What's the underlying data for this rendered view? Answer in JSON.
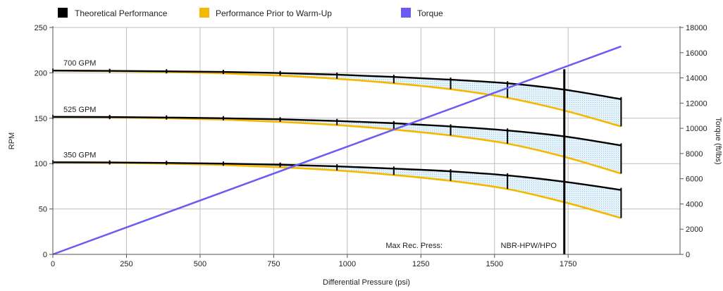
{
  "chart_data": {
    "type": "line",
    "legend": [
      {
        "name": "Theoretical Performance",
        "color": "#000000"
      },
      {
        "name": "Performance Prior to Warm-Up",
        "color": "#f5b800"
      },
      {
        "name": "Torque",
        "color": "#6a5cf2"
      }
    ],
    "legend_position": "top-left",
    "xlabel": "Differential Pressure (psi)",
    "ylabel": "RPM",
    "y2label": "Torque (ft/lbs)",
    "xlim": [
      0,
      2000
    ],
    "ylim": [
      0,
      250
    ],
    "y2lim": [
      0,
      18000
    ],
    "xticks": [
      0,
      250,
      500,
      750,
      1000,
      1250,
      1500,
      1750
    ],
    "yticks": [
      0,
      50,
      100,
      150,
      200,
      250
    ],
    "y2ticks": [
      0,
      2000,
      4000,
      6000,
      8000,
      10000,
      12000,
      14000,
      16000,
      18000
    ],
    "grid": true,
    "series_labels": [
      "700 GPM",
      "525 GPM",
      "350 GPM"
    ],
    "flow_curves": [
      {
        "label": "700 GPM",
        "theoretical": {
          "x": [
            0,
            193,
            386,
            579,
            772,
            965,
            1158,
            1351,
            1544,
            1737,
            1930
          ],
          "y": [
            202.5,
            202.2,
            201.7,
            201,
            199.8,
            198,
            195.5,
            192.5,
            188.5,
            181.5,
            171
          ]
        },
        "warmup": {
          "x": [
            0,
            193,
            386,
            579,
            772,
            965,
            1158,
            1351,
            1544,
            1737,
            1930
          ],
          "y": [
            202.5,
            202,
            201,
            199.5,
            197,
            193.5,
            188.5,
            182,
            172.5,
            158.5,
            141
          ]
        },
        "markers": [
          0,
          193,
          386,
          579,
          772,
          965,
          1158,
          1351,
          1544,
          1930
        ]
      },
      {
        "label": "525 GPM",
        "theoretical": {
          "x": [
            0,
            193,
            386,
            579,
            772,
            965,
            1158,
            1351,
            1544,
            1737,
            1930
          ],
          "y": [
            151.5,
            151.3,
            150.8,
            150,
            148.8,
            147,
            144.5,
            141,
            136.5,
            130,
            120
          ]
        },
        "warmup": {
          "x": [
            0,
            193,
            386,
            579,
            772,
            965,
            1158,
            1351,
            1544,
            1737,
            1930
          ],
          "y": [
            151.5,
            151,
            150,
            148.5,
            146,
            142.5,
            137.5,
            131,
            122,
            107.5,
            89
          ]
        },
        "markers": [
          0,
          193,
          386,
          579,
          772,
          965,
          1158,
          1351,
          1544,
          1930
        ]
      },
      {
        "label": "350 GPM",
        "theoretical": {
          "x": [
            0,
            193,
            386,
            579,
            772,
            965,
            1158,
            1351,
            1544,
            1737,
            1930
          ],
          "y": [
            101.5,
            101.3,
            100.8,
            100,
            98.8,
            97,
            94.5,
            91.5,
            87,
            80,
            71
          ]
        },
        "warmup": {
          "x": [
            0,
            193,
            386,
            579,
            772,
            965,
            1158,
            1351,
            1544,
            1737,
            1930
          ],
          "y": [
            101.5,
            101,
            100,
            98.5,
            96,
            92.5,
            87.5,
            81,
            72,
            57.5,
            40
          ]
        },
        "markers": [
          0,
          193,
          386,
          579,
          772,
          965,
          1158,
          1351,
          1544,
          1930
        ]
      }
    ],
    "torque": {
      "x": [
        0,
        1930
      ],
      "y": [
        0,
        16500
      ]
    },
    "max_rec_press": {
      "label": "Max Rec. Press:",
      "value_label": "NBR-HPW/HPO",
      "x": 1737
    },
    "colors": {
      "theoretical": "#000000",
      "warmup": "#f5b800",
      "torque": "#6a5cf2",
      "shade": "#cfe8f8",
      "grid": "#bdbdbd"
    }
  }
}
